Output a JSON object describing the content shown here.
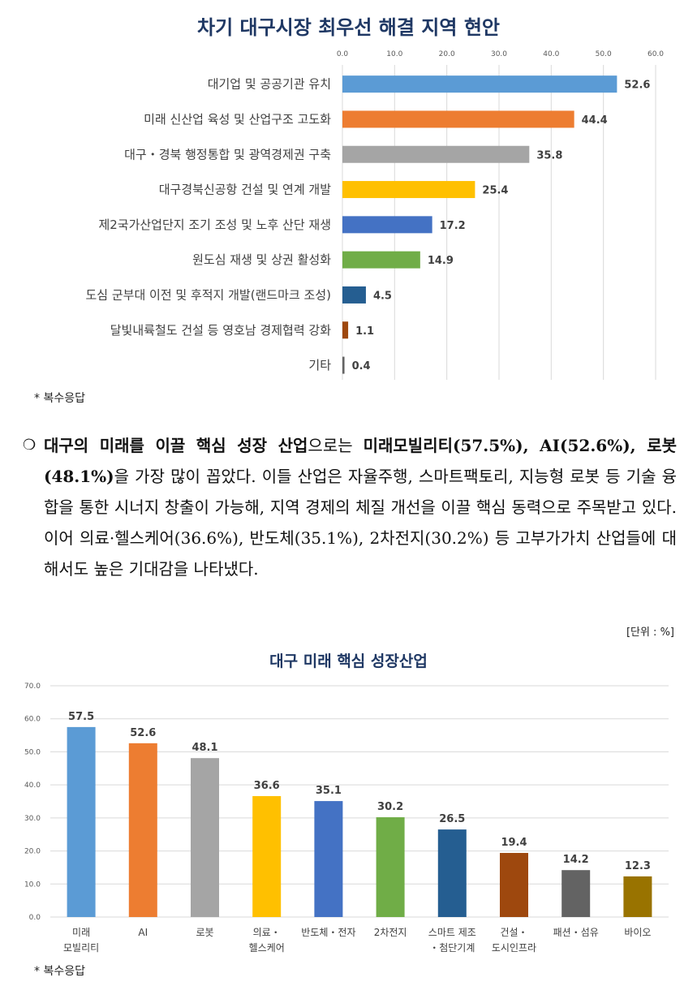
{
  "chart1": {
    "title": "차기 대구시장 최우선 해결 지역 현안",
    "note": "* 복수응답"
  },
  "paragraph": {
    "bullet": "❍",
    "parts": [
      {
        "text": "대구의 미래를 이끌 핵심 성장 산업",
        "bold": true
      },
      {
        "text": "으로는 ",
        "bold": false
      },
      {
        "text": "미래모빌리티(57.5%), AI(52.6%), 로봇(48.1%)",
        "bold": true
      },
      {
        "text": "을 가장 많이 꼽았다. 이들 산업은 자율주행, 스마트팩토리, 지능형 로봇 등 기술 융합을 통한 시너지 창출이 가능해, 지역 경제의 체질 개선을 이끌 핵심 동력으로 주목받고 있다. 이어 의료·헬스케어(36.6%), 반도체(35.1%), 2차전지(30.2%) 등 고부가가치 산업들에 대해서도 높은 기대감을 나타냈다.",
        "bold": false
      }
    ]
  },
  "chart2": {
    "title": "대구 미래 핵심 성장산업",
    "unit": "[단위 : %]",
    "note": "* 복수응답"
  },
  "chart_data": [
    {
      "type": "bar",
      "orientation": "horizontal",
      "title": "차기 대구시장 최우선 해결 지역 현안",
      "categories": [
        "대기업 및 공공기관 유치",
        "미래 신산업 육성 및 산업구조 고도화",
        "대구・경북 행정통합 및 광역경제권 구축",
        "대구경북신공항 건설 및 연계 개발",
        "제2국가산업단지 조기 조성 및 노후 산단 재생",
        "원도심 재생 및 상권 활성화",
        "도심 군부대 이전 및 후적지 개발(랜드마크 조성)",
        "달빛내륙철도 건설 등 영호남 경제협력 강화",
        "기타"
      ],
      "values": [
        52.6,
        44.4,
        35.8,
        25.4,
        17.2,
        14.9,
        4.5,
        1.1,
        0.4
      ],
      "value_labels": [
        "52.6",
        "44.4",
        "35.8",
        "25.4",
        "17.2",
        "14.9",
        "4.5",
        "1.1",
        "0.4"
      ],
      "colors": [
        "#5b9bd5",
        "#ed7d31",
        "#a5a5a5",
        "#ffc000",
        "#4472c4",
        "#70ad47",
        "#255e91",
        "#9e480e",
        "#636363"
      ],
      "xlim": [
        0,
        60
      ],
      "ticks": [
        "0.0",
        "10.0",
        "20.0",
        "30.0",
        "40.0",
        "50.0",
        "60.0"
      ],
      "grid": true
    },
    {
      "type": "bar",
      "orientation": "vertical",
      "title": "대구 미래 핵심 성장산업",
      "categories": [
        [
          "미래",
          "모빌리티"
        ],
        [
          "AI"
        ],
        [
          "로봇"
        ],
        [
          "의료・",
          "헬스케어"
        ],
        [
          "반도체・전자"
        ],
        [
          "2차전지"
        ],
        [
          "스마트 제조",
          "・첨단기계"
        ],
        [
          "건설・",
          "도시인프라"
        ],
        [
          "패션・섬유"
        ],
        [
          "바이오"
        ]
      ],
      "values": [
        57.5,
        52.6,
        48.1,
        36.6,
        35.1,
        30.2,
        26.5,
        19.4,
        14.2,
        12.3
      ],
      "value_labels": [
        "57.5",
        "52.6",
        "48.1",
        "36.6",
        "35.1",
        "30.2",
        "26.5",
        "19.4",
        "14.2",
        "12.3"
      ],
      "colors": [
        "#5b9bd5",
        "#ed7d31",
        "#a5a5a5",
        "#ffc000",
        "#4472c4",
        "#70ad47",
        "#255e91",
        "#9e480e",
        "#636363",
        "#997300"
      ],
      "ylim": [
        0,
        70
      ],
      "ticks": [
        "0.0",
        "10.0",
        "20.0",
        "30.0",
        "40.0",
        "50.0",
        "60.0",
        "70.0"
      ],
      "grid": true
    }
  ]
}
